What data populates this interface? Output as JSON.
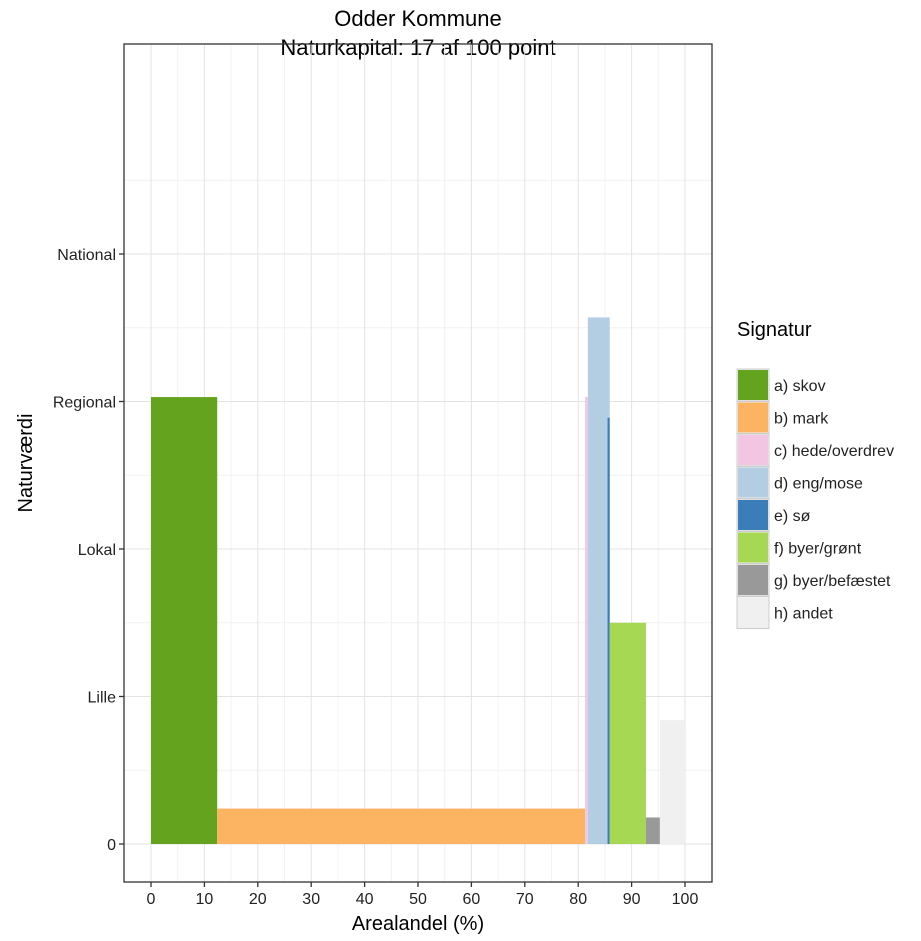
{
  "chart_data": {
    "type": "bar",
    "title": "Odder Kommune",
    "subtitle": "Naturkapital: 17 af 100 point",
    "xlabel": "Arealandel (%)",
    "ylabel": "Naturværdi",
    "xlim": [
      -5,
      105
    ],
    "ylim": [
      -0.25,
      5.4
    ],
    "x_ticks": [
      0,
      10,
      20,
      30,
      40,
      50,
      60,
      70,
      80,
      90,
      100
    ],
    "y_ticks": [
      {
        "value": 0,
        "label": "0"
      },
      {
        "value": 1,
        "label": "Lille"
      },
      {
        "value": 2,
        "label": "Lokal"
      },
      {
        "value": 3,
        "label": "Regional"
      },
      {
        "value": 4,
        "label": "National"
      }
    ],
    "grid": true,
    "legend": {
      "title": "Signatur",
      "position": "right"
    },
    "series": [
      {
        "name": "a) skov",
        "color": "#63a31e",
        "x_start": 0,
        "x_end": 12.4,
        "value": 3.03
      },
      {
        "name": "b) mark",
        "color": "#fdb462",
        "x_start": 12.4,
        "x_end": 81.3,
        "value": 0.24
      },
      {
        "name": "c) hede/overdrev",
        "color": "#f2c6e3",
        "x_start": 81.3,
        "x_end": 81.8,
        "value": 3.03
      },
      {
        "name": "d) eng/mose",
        "color": "#b3cde3",
        "x_start": 81.8,
        "x_end": 85.9,
        "value": 3.57
      },
      {
        "name": "e) sø",
        "color": "#3a7db8",
        "x_start": 85.5,
        "x_end": 85.9,
        "value": 2.89
      },
      {
        "name": "f) byer/grønt",
        "color": "#a6d854",
        "x_start": 85.9,
        "x_end": 92.7,
        "value": 1.5
      },
      {
        "name": "g) byer/befæstet",
        "color": "#999999",
        "x_start": 92.7,
        "x_end": 95.3,
        "value": 0.18
      },
      {
        "name": "h) andet",
        "color": "#f0f0f0",
        "x_start": 95.3,
        "x_end": 100,
        "value": 0.84
      }
    ]
  }
}
